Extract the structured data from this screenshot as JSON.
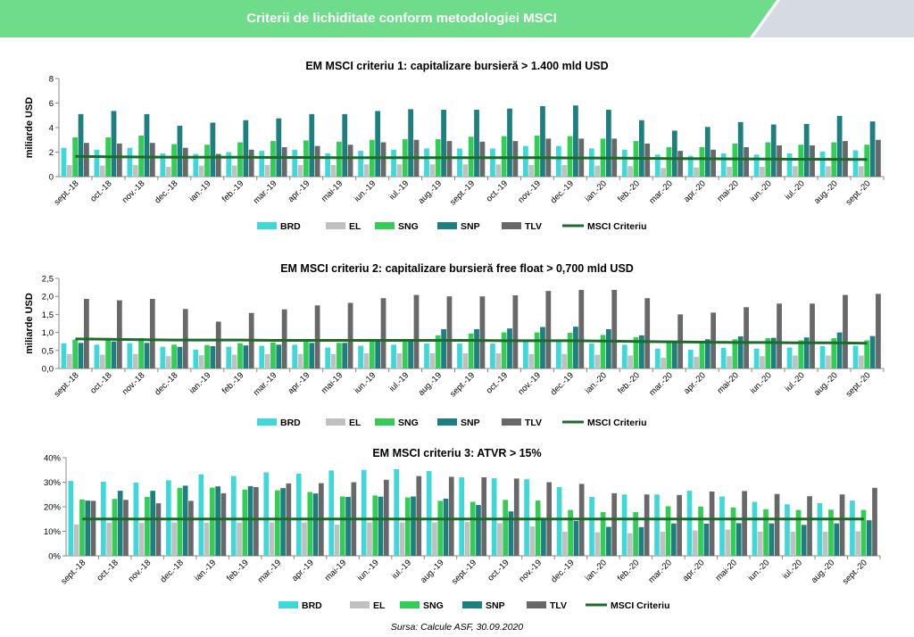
{
  "page": {
    "banner_title": "Criterii de lichiditate conform metodologiei MSCI",
    "source": "Sursa: Calcule ASF, 30.09.2020"
  },
  "colors": {
    "banner_green": "#6fdc8c",
    "banner_gray": "#d6dbe3",
    "BRD": "#3fd8d8",
    "EL": "#c0c0c0",
    "SNG": "#33cc55",
    "SNP": "#1e7f80",
    "TLV": "#686868",
    "MSCI Criteriu": "#1d6b2a"
  },
  "chart_data": [
    {
      "type": "bar",
      "title": "EM MSCI criteriu 1: capitalizare bursieră > 1.400 mld USD",
      "ylabel": "miliarde USD",
      "ylim": [
        0,
        8
      ],
      "yticks": [
        "0",
        "2",
        "4",
        "6",
        "8"
      ],
      "grid": false,
      "legend": "bottom",
      "categories": [
        "sept.-18",
        "oct.-18",
        "nov.-18",
        "dec.-18",
        "ian.-19",
        "feb.-19",
        "mar.-19",
        "apr.-19",
        "mai-19",
        "iun.-19",
        "iul.-19",
        "aug.-19",
        "sept.-19",
        "oct.-19",
        "nov.-19",
        "dec.-19",
        "ian.-20",
        "feb.-20",
        "mar.-20",
        "apr.-20",
        "mai-20",
        "iun.-20",
        "iul.-20",
        "aug.-20",
        "sept.-20"
      ],
      "series": [
        {
          "name": "BRD",
          "values": [
            2.35,
            2.2,
            2.35,
            1.9,
            1.85,
            2.0,
            2.1,
            2.2,
            1.9,
            2.1,
            2.2,
            2.3,
            2.3,
            2.3,
            2.5,
            2.5,
            2.3,
            2.2,
            1.8,
            1.7,
            1.9,
            1.8,
            1.9,
            2.05,
            2.15
          ]
        },
        {
          "name": "EL",
          "values": [
            0.95,
            0.9,
            0.95,
            0.8,
            0.9,
            0.9,
            0.95,
            0.95,
            0.95,
            1.0,
            1.0,
            1.0,
            1.0,
            1.0,
            0.95,
            0.95,
            0.9,
            0.85,
            0.7,
            0.75,
            0.8,
            0.8,
            0.85,
            0.85,
            0.85
          ]
        },
        {
          "name": "SNG",
          "values": [
            3.2,
            3.2,
            3.35,
            2.65,
            2.6,
            2.8,
            2.9,
            2.95,
            2.85,
            3.0,
            3.05,
            3.05,
            3.25,
            3.3,
            3.35,
            3.3,
            3.1,
            2.9,
            2.4,
            2.4,
            2.7,
            2.8,
            2.6,
            2.8,
            2.6
          ]
        },
        {
          "name": "SNP",
          "values": [
            5.1,
            5.35,
            5.1,
            4.15,
            4.4,
            4.6,
            4.75,
            5.1,
            5.1,
            5.35,
            5.5,
            5.45,
            5.45,
            5.55,
            5.75,
            5.8,
            5.45,
            4.6,
            3.75,
            4.05,
            4.45,
            4.25,
            4.3,
            4.95,
            4.5
          ]
        },
        {
          "name": "TLV",
          "values": [
            2.75,
            2.7,
            2.75,
            2.35,
            1.85,
            2.2,
            2.4,
            2.5,
            2.6,
            2.8,
            3.0,
            2.9,
            2.85,
            2.9,
            3.1,
            3.1,
            3.1,
            2.7,
            2.1,
            2.2,
            2.4,
            2.55,
            2.55,
            2.9,
            3.0
          ]
        },
        {
          "name": "MSCI Criteriu",
          "type": "line",
          "values": [
            1.65,
            1.62,
            1.6,
            1.58,
            1.58,
            1.58,
            1.56,
            1.56,
            1.55,
            1.55,
            1.55,
            1.55,
            1.55,
            1.54,
            1.54,
            1.53,
            1.52,
            1.5,
            1.48,
            1.46,
            1.45,
            1.43,
            1.42,
            1.41,
            1.4
          ]
        }
      ]
    },
    {
      "type": "bar",
      "title": "EM MSCI criteriu 2: capitalizare bursieră free float > 0,700 mld USD",
      "ylabel": "miliarde USD",
      "ylim": [
        0,
        2.5
      ],
      "yticks": [
        "0,0",
        "0,5",
        "1,0",
        "1,5",
        "2,0",
        "2,5"
      ],
      "grid": false,
      "legend": "bottom",
      "categories": [
        "sept.-18",
        "oct.-18",
        "nov.-18",
        "dec.-18",
        "ian.-19",
        "feb.-19",
        "mar.-19",
        "apr.-19",
        "mai-19",
        "iun.-19",
        "iul.-19",
        "aug.-19",
        "sept.-19",
        "oct.-19",
        "nov.-19",
        "dec.-19",
        "ian.-20",
        "feb.-20",
        "mar.-20",
        "apr.-20",
        "mai-20",
        "iun.-20",
        "iul.-20",
        "aug.-20",
        "sept.-20"
      ],
      "series": [
        {
          "name": "BRD",
          "values": [
            0.7,
            0.66,
            0.7,
            0.6,
            0.52,
            0.6,
            0.63,
            0.66,
            0.58,
            0.63,
            0.66,
            0.69,
            0.69,
            0.69,
            0.75,
            0.75,
            0.69,
            0.66,
            0.55,
            0.52,
            0.57,
            0.55,
            0.58,
            0.62,
            0.63
          ]
        },
        {
          "name": "EL",
          "values": [
            0.4,
            0.38,
            0.4,
            0.34,
            0.37,
            0.38,
            0.4,
            0.4,
            0.4,
            0.42,
            0.42,
            0.42,
            0.42,
            0.42,
            0.4,
            0.4,
            0.38,
            0.36,
            0.3,
            0.32,
            0.34,
            0.34,
            0.36,
            0.36,
            0.36
          ]
        },
        {
          "name": "SNG",
          "values": [
            0.8,
            0.8,
            0.84,
            0.66,
            0.65,
            0.7,
            0.72,
            0.74,
            0.71,
            0.75,
            0.76,
            0.92,
            0.97,
            1.0,
            1.0,
            0.99,
            0.93,
            0.87,
            0.72,
            0.72,
            0.81,
            0.84,
            0.78,
            0.84,
            0.78
          ]
        },
        {
          "name": "SNP",
          "values": [
            0.71,
            0.75,
            0.71,
            0.6,
            0.62,
            0.64,
            0.66,
            0.71,
            0.71,
            0.75,
            0.77,
            1.09,
            1.09,
            1.11,
            1.15,
            1.16,
            1.09,
            0.92,
            0.75,
            0.81,
            0.89,
            0.85,
            0.86,
            1.0,
            0.9
          ]
        },
        {
          "name": "TLV",
          "values": [
            1.93,
            1.89,
            1.93,
            1.65,
            1.3,
            1.54,
            1.64,
            1.75,
            1.82,
            1.95,
            2.04,
            2.0,
            2.0,
            2.03,
            2.15,
            2.18,
            2.18,
            1.95,
            1.5,
            1.55,
            1.7,
            1.8,
            1.8,
            2.04,
            2.07
          ]
        },
        {
          "name": "MSCI Criteriu",
          "type": "line",
          "values": [
            0.82,
            0.81,
            0.8,
            0.79,
            0.79,
            0.79,
            0.78,
            0.78,
            0.78,
            0.78,
            0.78,
            0.78,
            0.78,
            0.77,
            0.77,
            0.77,
            0.76,
            0.75,
            0.74,
            0.73,
            0.72,
            0.72,
            0.71,
            0.71,
            0.7
          ]
        }
      ]
    },
    {
      "type": "bar",
      "title": "EM MSCI criteriu 3: ATVR > 15%",
      "ylabel": "",
      "ylim": [
        0,
        40
      ],
      "yticks": [
        "0%",
        "10%",
        "20%",
        "30%",
        "40%"
      ],
      "grid": false,
      "legend": "bottom",
      "categories": [
        "sept.-18",
        "oct.-18",
        "nov.-18",
        "dec.-18",
        "ian.-19",
        "feb.-19",
        "mar.-19",
        "apr.-19",
        "mai-19",
        "iun.-19",
        "iul.-19",
        "aug.-19",
        "sept.-19",
        "oct.-19",
        "nov.-19",
        "dec.-19",
        "ian.-20",
        "feb.-20",
        "mar.-20",
        "apr.-20",
        "mai-20",
        "iun.-20",
        "iul.-20",
        "aug.-20",
        "sept.-20"
      ],
      "series": [
        {
          "name": "BRD",
          "values": [
            30.5,
            30.2,
            29.8,
            30.8,
            33.2,
            32.5,
            34.0,
            33.5,
            34.8,
            35.0,
            35.3,
            34.6,
            32.0,
            31.6,
            31.2,
            28.0,
            24.0,
            25.0,
            25.0,
            26.5,
            24.2,
            22.0,
            21.0,
            21.5,
            22.5
          ]
        },
        {
          "name": "EL",
          "values": [
            12.8,
            13.5,
            13.4,
            13.6,
            13.5,
            13.5,
            13.6,
            13.6,
            12.7,
            13.6,
            13.6,
            13.6,
            13.8,
            13.3,
            12.0,
            9.8,
            9.6,
            9.2,
            9.8,
            10.3,
            10.7,
            9.8,
            9.8,
            9.8,
            10.0
          ]
        },
        {
          "name": "SNG",
          "values": [
            23.0,
            23.2,
            24.0,
            27.7,
            27.8,
            27.0,
            26.7,
            26.0,
            24.2,
            24.6,
            23.8,
            22.4,
            22.0,
            22.8,
            22.5,
            18.7,
            17.8,
            17.8,
            20.2,
            20.1,
            19.7,
            19.0,
            18.7,
            18.8,
            18.7
          ]
        },
        {
          "name": "SNP",
          "values": [
            22.5,
            26.5,
            26.5,
            28.6,
            28.3,
            28.4,
            27.6,
            25.4,
            24.0,
            24.1,
            24.2,
            23.3,
            20.7,
            18.1,
            14.8,
            14.2,
            11.8,
            11.7,
            13.2,
            13.1,
            13.3,
            13.2,
            12.6,
            13.2,
            14.5
          ]
        },
        {
          "name": "TLV",
          "values": [
            22.4,
            22.8,
            21.4,
            22.4,
            25.5,
            28.0,
            29.5,
            29.6,
            30.0,
            31.0,
            32.5,
            32.2,
            32.0,
            31.5,
            30.0,
            29.3,
            25.5,
            25.0,
            24.8,
            26.2,
            26.4,
            25.2,
            24.3,
            25.0,
            27.7
          ]
        },
        {
          "name": "MSCI Criteriu",
          "type": "line",
          "values": [
            15,
            15,
            15,
            15,
            15,
            15,
            15,
            15,
            15,
            15,
            15,
            15,
            15,
            15,
            15,
            15,
            15,
            15,
            15,
            15,
            15,
            15,
            15,
            15,
            15
          ]
        }
      ]
    }
  ]
}
